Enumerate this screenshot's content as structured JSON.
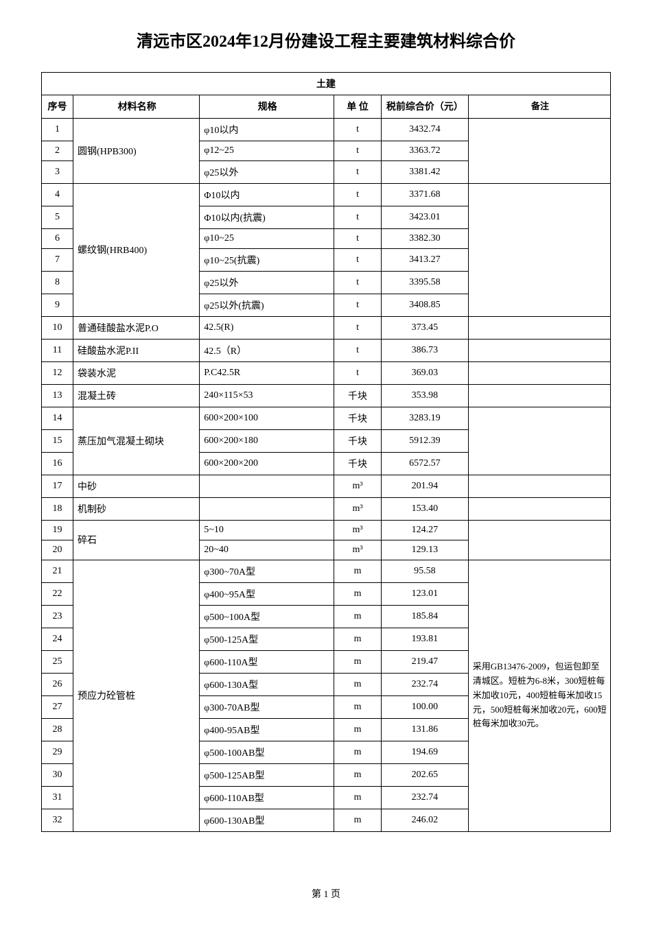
{
  "title": "清远市区2024年12月份建设工程主要建筑材料综合价",
  "section_header": "土建",
  "columns": {
    "seq": "序号",
    "material": "材料名称",
    "spec": "规格",
    "unit": "单 位",
    "price": "税前综合价（元）",
    "remark": "备注"
  },
  "remark_pile": "采用GB13476-2009，包运包卸至清城区。短桩为6-8米，300短桩每米加收10元，400短桩每米加收15元，500短桩每米加收20元，600短桩每米加收30元。",
  "rows": [
    {
      "seq": "1",
      "spec": "φ10以内",
      "unit": "t",
      "price": "3432.74"
    },
    {
      "seq": "2",
      "material": "圆钢(HPB300)",
      "spec": "φ12~25",
      "unit": "t",
      "price": "3363.72"
    },
    {
      "seq": "3",
      "spec": "φ25以外",
      "unit": "t",
      "price": "3381.42"
    },
    {
      "seq": "4",
      "spec": "Φ10以内",
      "unit": "t",
      "price": "3371.68"
    },
    {
      "seq": "5",
      "spec": "Φ10以内(抗震)",
      "unit": "t",
      "price": "3423.01"
    },
    {
      "seq": "6",
      "material": "螺纹钢(HRB400)",
      "spec": "φ10~25",
      "unit": "t",
      "price": "3382.30"
    },
    {
      "seq": "7",
      "spec": "φ10~25(抗震)",
      "unit": "t",
      "price": "3413.27"
    },
    {
      "seq": "8",
      "spec": "φ25以外",
      "unit": "t",
      "price": "3395.58"
    },
    {
      "seq": "9",
      "spec": "φ25以外(抗震)",
      "unit": "t",
      "price": "3408.85"
    },
    {
      "seq": "10",
      "material": "普通硅酸盐水泥P.O",
      "spec": "42.5(R)",
      "unit": "t",
      "price": "373.45"
    },
    {
      "seq": "11",
      "material": "硅酸盐水泥P.II",
      "spec": "42.5（R）",
      "unit": "t",
      "price": "386.73"
    },
    {
      "seq": "12",
      "material": "袋装水泥",
      "spec": "P.C42.5R",
      "unit": "t",
      "price": "369.03"
    },
    {
      "seq": "13",
      "material": "混凝土砖",
      "spec": "240×115×53",
      "unit": "千块",
      "price": "353.98"
    },
    {
      "seq": "14",
      "spec": "600×200×100",
      "unit": "千块",
      "price": "3283.19"
    },
    {
      "seq": "15",
      "material": "蒸压加气混凝土砌块",
      "spec": "600×200×180",
      "unit": "千块",
      "price": "5912.39"
    },
    {
      "seq": "16",
      "spec": "600×200×200",
      "unit": "千块",
      "price": "6572.57"
    },
    {
      "seq": "17",
      "material": "中砂",
      "spec": "",
      "unit": "m³",
      "price": "201.94"
    },
    {
      "seq": "18",
      "material": "机制砂",
      "spec": "",
      "unit": "m³",
      "price": "153.40"
    },
    {
      "seq": "19",
      "material": "碎石",
      "spec": "5~10",
      "unit": "m³",
      "price": "124.27"
    },
    {
      "seq": "20",
      "spec": "20~40",
      "unit": "m³",
      "price": "129.13"
    },
    {
      "seq": "21",
      "spec": "φ300~70A型",
      "unit": "m",
      "price": "95.58"
    },
    {
      "seq": "22",
      "spec": "φ400~95A型",
      "unit": "m",
      "price": "123.01"
    },
    {
      "seq": "23",
      "spec": "φ500~100A型",
      "unit": "m",
      "price": "185.84"
    },
    {
      "seq": "24",
      "spec": "φ500-125A型",
      "unit": "m",
      "price": "193.81"
    },
    {
      "seq": "25",
      "spec": "φ600-110A型",
      "unit": "m",
      "price": "219.47"
    },
    {
      "seq": "26",
      "material": "预应力砼管桩",
      "spec": "φ600-130A型",
      "unit": "m",
      "price": "232.74"
    },
    {
      "seq": "27",
      "spec": "φ300-70AB型",
      "unit": "m",
      "price": "100.00"
    },
    {
      "seq": "28",
      "spec": "φ400-95AB型",
      "unit": "m",
      "price": "131.86"
    },
    {
      "seq": "29",
      "spec": "φ500-100AB型",
      "unit": "m",
      "price": "194.69"
    },
    {
      "seq": "30",
      "spec": "φ500-125AB型",
      "unit": "m",
      "price": "202.65"
    },
    {
      "seq": "31",
      "spec": "φ600-110AB型",
      "unit": "m",
      "price": "232.74"
    },
    {
      "seq": "32",
      "spec": "φ600-130AB型",
      "unit": "m",
      "price": "246.02"
    }
  ],
  "footer": "第 1 页"
}
